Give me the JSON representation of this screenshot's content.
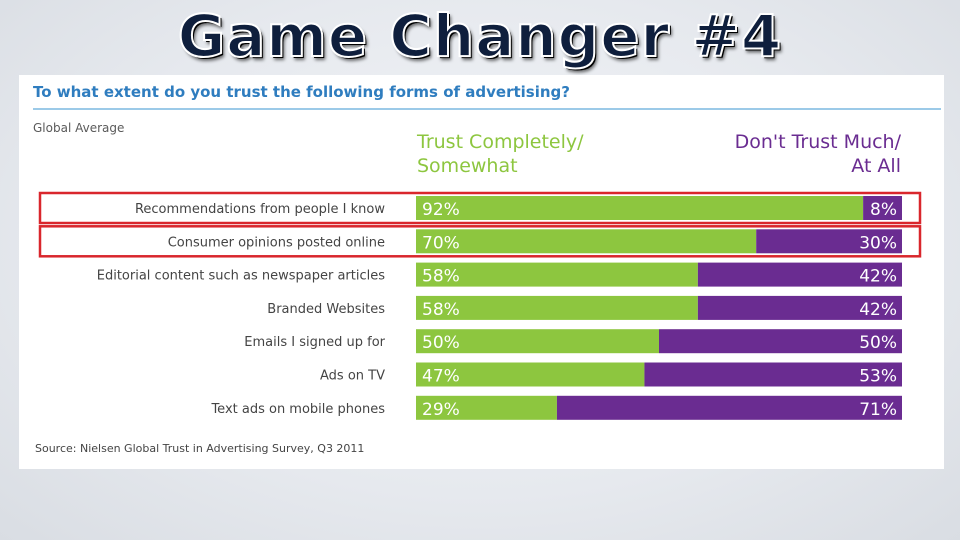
{
  "slide_title": "Game Changer #4",
  "question": "To what extent do you trust the following forms of advertising?",
  "subheading": "Global Average",
  "source": "Source: Nielsen Global Trust in Advertising Survey, Q3 2011",
  "colors": {
    "trust": "#8dc63f",
    "dont_trust": "#6a2c91",
    "highlight": "#d9262c"
  },
  "chart_data": {
    "type": "bar",
    "stacked": true,
    "orientation": "horizontal",
    "categories": [
      "Recommendations from people I know",
      "Consumer opinions posted online",
      "Editorial content such as newspaper articles",
      "Branded Websites",
      "Emails I signed up for",
      "Ads on TV",
      "Text ads on mobile phones"
    ],
    "series": [
      {
        "name": "Trust Completely/ Somewhat",
        "name_lines": [
          "Trust Completely/",
          "Somewhat"
        ],
        "values": [
          92,
          70,
          58,
          58,
          50,
          47,
          29
        ]
      },
      {
        "name": "Don't Trust Much/ At All",
        "name_lines": [
          "Don't Trust Much/",
          "At All"
        ],
        "values": [
          8,
          30,
          42,
          42,
          50,
          53,
          71
        ]
      }
    ],
    "value_suffix": "%",
    "xlim": [
      0,
      100
    ],
    "highlighted_categories": [
      0,
      1
    ]
  }
}
